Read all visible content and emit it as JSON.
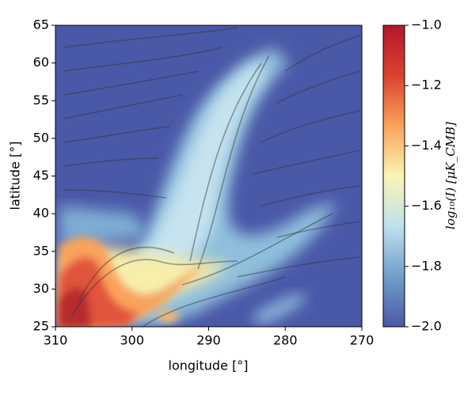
{
  "chart_data": {
    "type": "heatmap",
    "x_label": "longitude [°]",
    "y_label": "latitude [°]",
    "colorbar_label": "log₁₀(I) [μK_CMB]",
    "xlim": [
      310,
      270
    ],
    "xticks": [
      310,
      300,
      290,
      280,
      270
    ],
    "ylim": [
      25,
      65
    ],
    "yticks": [
      25,
      30,
      35,
      40,
      45,
      50,
      55,
      60,
      65
    ],
    "clim": [
      -2,
      -1
    ],
    "cticks": [
      {
        "value": -2,
        "label": "−2.0"
      },
      {
        "value": -1.8,
        "label": "−1.8"
      },
      {
        "value": -1.6,
        "label": "−1.6"
      },
      {
        "value": -1.4,
        "label": "−1.4"
      },
      {
        "value": -1.2,
        "label": "−1.2"
      },
      {
        "value": -1,
        "label": "−1.0"
      }
    ],
    "colormap": [
      "#4a58a8",
      "#6f9fcb",
      "#bfe0ee",
      "#fbf4b4",
      "#f9a35b",
      "#d9432f",
      "#b2182b"
    ]
  }
}
